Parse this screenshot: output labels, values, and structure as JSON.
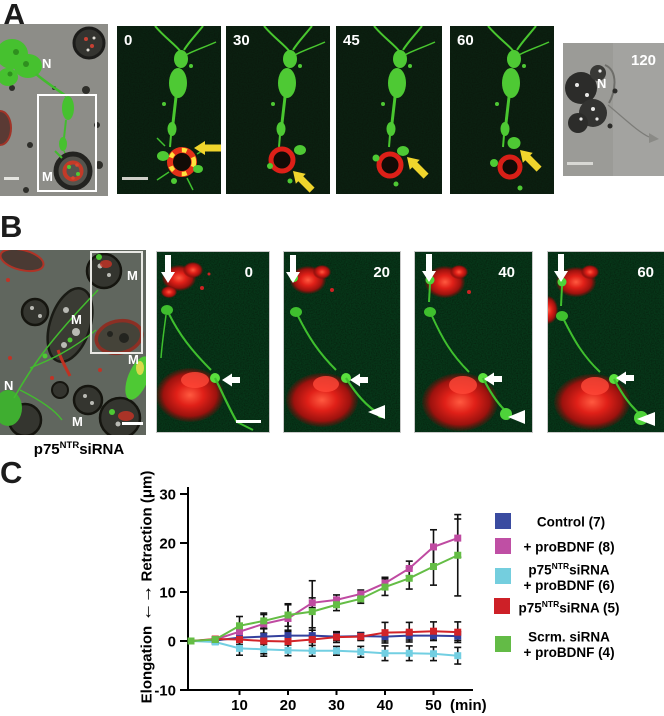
{
  "panels": {
    "A": {
      "label": "A",
      "merged": {
        "n": "N",
        "m": "M"
      },
      "frames": [
        {
          "time": "0"
        },
        {
          "time": "30"
        },
        {
          "time": "45"
        },
        {
          "time": "60"
        }
      ],
      "brightfield": {
        "time": "120",
        "n": "N"
      }
    },
    "B": {
      "label": "B",
      "merged": {
        "m_top": "M",
        "m_mid": "M",
        "m_right": "M",
        "n": "N",
        "m_bottom": "M"
      },
      "caption": {
        "base": "p75",
        "sup": "NTR",
        "rest": "siRNA"
      },
      "frames": [
        {
          "time": "0"
        },
        {
          "time": "20"
        },
        {
          "time": "40"
        },
        {
          "time": "60"
        }
      ]
    },
    "C": {
      "label": "C"
    }
  },
  "icons": {
    "down_arrow_glyph": "←",
    "up_arrow_glyph": "→"
  },
  "chart_data": {
    "type": "line",
    "title": "",
    "ylabel_bottom": "Elongation",
    "ylabel_top": "Retraction (μm)",
    "x_unit": "(min)",
    "ylim": [
      -10,
      30
    ],
    "y_ticks": [
      30,
      20,
      10,
      0,
      -10
    ],
    "x_ticks": [
      10,
      20,
      30,
      40,
      50
    ],
    "grid": false,
    "legend_position": "right",
    "x": [
      0,
      5,
      10,
      15,
      20,
      25,
      30,
      35,
      40,
      45,
      50,
      55
    ],
    "series": [
      {
        "name": "Control (7)",
        "color": "#33409d",
        "values": [
          0,
          0.1,
          0.7,
          0.9,
          1.1,
          1.1,
          0.9,
          1.0,
          0.9,
          1.1,
          1.1,
          1.0
        ],
        "errors": [
          0,
          0.4,
          1.4,
          1.6,
          1.1,
          1.1,
          0.8,
          0.7,
          0.9,
          0.9,
          0.9,
          0.9
        ]
      },
      {
        "name": "+ proBDNF (8)",
        "color": "#bf4aa1",
        "values": [
          0,
          0.3,
          1.9,
          3.5,
          4.6,
          7.8,
          8.4,
          9.6,
          11.8,
          14.8,
          19.2,
          21.0
        ],
        "errors": [
          0,
          0.4,
          1.3,
          1.9,
          2.8,
          1.0,
          1.0,
          0.8,
          1.2,
          1.5,
          3.5,
          3.9
        ]
      },
      {
        "name": "p75NTRsiRNA + proBDNF (6)",
        "color": "#72cfe2",
        "values": [
          0,
          -0.2,
          -1.5,
          -1.7,
          -1.9,
          -2.0,
          -2.0,
          -2.2,
          -2.5,
          -2.5,
          -2.6,
          -3.0
        ],
        "errors": [
          0,
          0.4,
          1.4,
          1.4,
          1.1,
          1.1,
          0.9,
          1.1,
          1.5,
          1.5,
          1.4,
          1.7
        ]
      },
      {
        "name": "p75NTRsiRNA (5)",
        "color": "#d22328",
        "values": [
          0,
          0.4,
          0.3,
          0.0,
          -0.1,
          0.3,
          0.8,
          0.9,
          1.7,
          1.8,
          2.0,
          1.8
        ],
        "errors": [
          0,
          0.4,
          2.2,
          2.6,
          2.1,
          2.4,
          1.1,
          0.8,
          2.1,
          2.0,
          1.9,
          2.1
        ]
      },
      {
        "name": "Scrm. siRNA + proBDNF (4)",
        "color": "#64bd45",
        "values": [
          0,
          0.3,
          3.1,
          4.1,
          5.3,
          6.0,
          7.4,
          8.6,
          11.0,
          12.8,
          15.2,
          17.5
        ],
        "errors": [
          0,
          0.4,
          1.9,
          1.6,
          2.3,
          6.3,
          1.2,
          0.9,
          1.7,
          2.2,
          3.8,
          8.3
        ]
      }
    ]
  },
  "legend": {
    "items": [
      {
        "color": "#3a4ba0",
        "line1_pre": "Control (7)",
        "line1_sup": "",
        "line1_post": "",
        "line2": ""
      },
      {
        "color": "#bf4fa4",
        "line1_pre": "+ proBDNF (8)",
        "line1_sup": "",
        "line1_post": "",
        "line2": ""
      },
      {
        "color": "#74cede",
        "line1_pre": "p75",
        "line1_sup": "NTR",
        "line1_post": "siRNA",
        "line2": "+ proBDNF (6)"
      },
      {
        "color": "#cd2027",
        "line1_pre": "p75",
        "line1_sup": "NTR",
        "line1_post": "siRNA (5)",
        "line2": ""
      },
      {
        "color": "#63bb46",
        "line1_pre": "Scrm. siRNA",
        "line1_sup": "",
        "line1_post": "",
        "line2": "+ proBDNF (4)"
      }
    ]
  }
}
